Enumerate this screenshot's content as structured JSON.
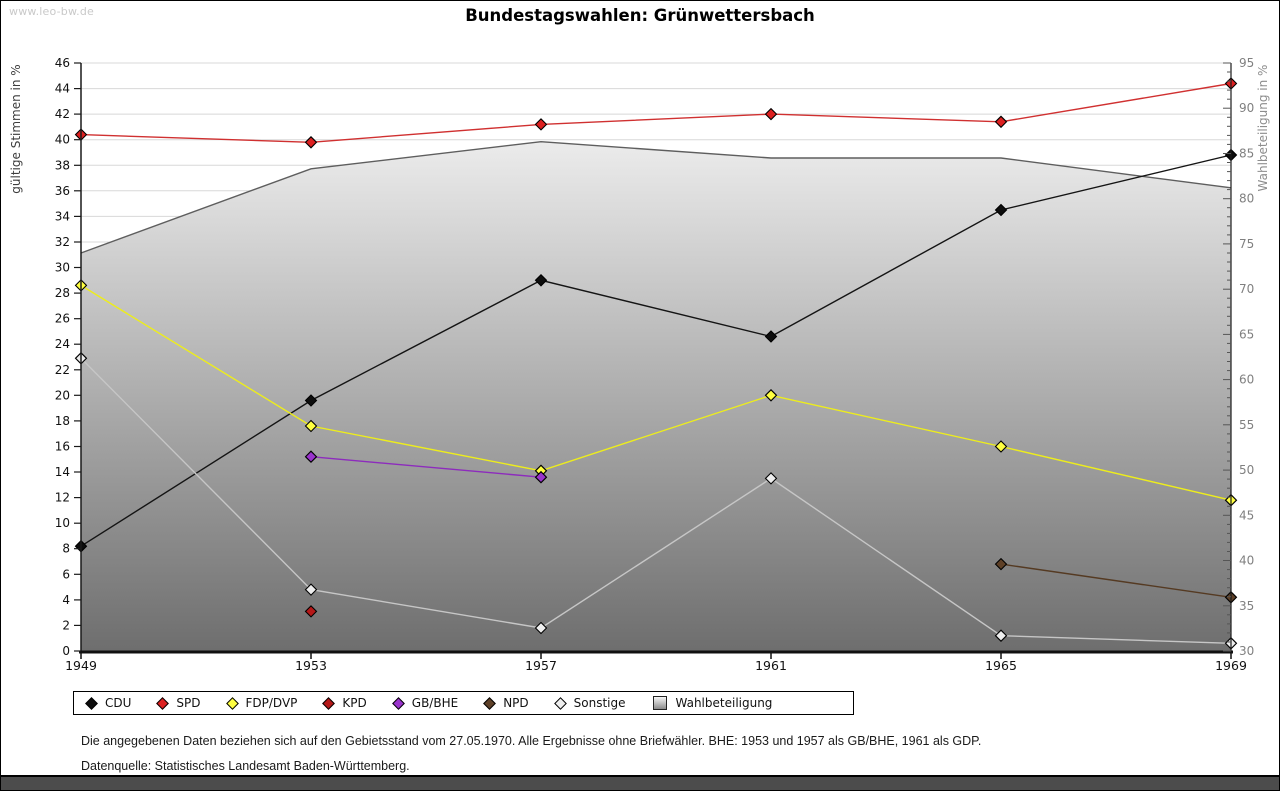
{
  "page": {
    "watermark": "www.leo-bw.de",
    "title": "Bundestagswahlen: Grünwettersbach",
    "footnote1": "Die angegebenen Daten beziehen sich auf den Gebietsstand vom 27.05.1970. Alle Ergebnisse ohne Briefwähler. BHE: 1953 und 1957 als GB/BHE, 1961 als GDP.",
    "footnote2": "Datenquelle: Statistisches Landesamt Baden-Württemberg."
  },
  "chart_data": {
    "type": "line",
    "title": "Bundestagswahlen: Grünwettersbach",
    "x": [
      1949,
      1953,
      1957,
      1961,
      1965,
      1969
    ],
    "ylabel_left": "gültige Stimmen in %",
    "ylabel_right": "Wahlbeteiligung in %",
    "ylim_left": [
      0,
      46
    ],
    "yticks_left": [
      0,
      2,
      4,
      6,
      8,
      10,
      12,
      14,
      16,
      18,
      20,
      22,
      24,
      26,
      28,
      30,
      32,
      34,
      36,
      38,
      40,
      42,
      44,
      46
    ],
    "ylim_right": [
      30,
      95
    ],
    "yticks_right": [
      30,
      35,
      40,
      45,
      50,
      55,
      60,
      65,
      70,
      75,
      80,
      85,
      90,
      95
    ],
    "minor_tick_step_right": 1,
    "grid": true,
    "grid_color": "#d8d8d8",
    "legend_position": "bottom",
    "series": [
      {
        "name": "CDU",
        "axis": "left",
        "color": "#141414",
        "marker_fill": "#0d0d0d",
        "values": [
          8.2,
          19.6,
          29.0,
          24.6,
          34.5,
          38.8
        ]
      },
      {
        "name": "SPD",
        "axis": "left",
        "color": "#d03030",
        "marker_fill": "#dd2020",
        "values": [
          40.4,
          39.8,
          41.2,
          42.0,
          41.4,
          44.4
        ]
      },
      {
        "name": "FDP/DVP",
        "axis": "left",
        "color": "#eded1c",
        "marker_fill": "#ffff40",
        "values": [
          28.6,
          17.6,
          14.1,
          20.0,
          16.0,
          11.8
        ]
      },
      {
        "name": "KPD",
        "axis": "left",
        "color": "#a51212",
        "marker_fill": "#b51818",
        "values": [
          null,
          3.1,
          null,
          null,
          null,
          null
        ]
      },
      {
        "name": "GB/BHE",
        "axis": "left",
        "color": "#8d2bbd",
        "marker_fill": "#9933cc",
        "values": [
          null,
          15.2,
          13.6,
          null,
          null,
          null
        ]
      },
      {
        "name": "NPD",
        "axis": "left",
        "color": "#553a22",
        "marker_fill": "#5e4027",
        "values": [
          null,
          null,
          null,
          null,
          6.8,
          4.2
        ]
      },
      {
        "name": "Sonstige",
        "axis": "left",
        "color": "#c6c6c6",
        "marker_fill": "#eeeeee",
        "values": [
          22.9,
          4.8,
          1.8,
          13.5,
          1.2,
          0.6
        ]
      },
      {
        "name": "Wahlbeteiligung",
        "axis": "right",
        "kind": "area",
        "color": "#5e5e5e",
        "fill_top": "#ffffff",
        "fill_bottom": "#6e6e6e",
        "values": [
          74.0,
          83.3,
          86.3,
          84.5,
          84.5,
          81.2
        ]
      }
    ]
  }
}
